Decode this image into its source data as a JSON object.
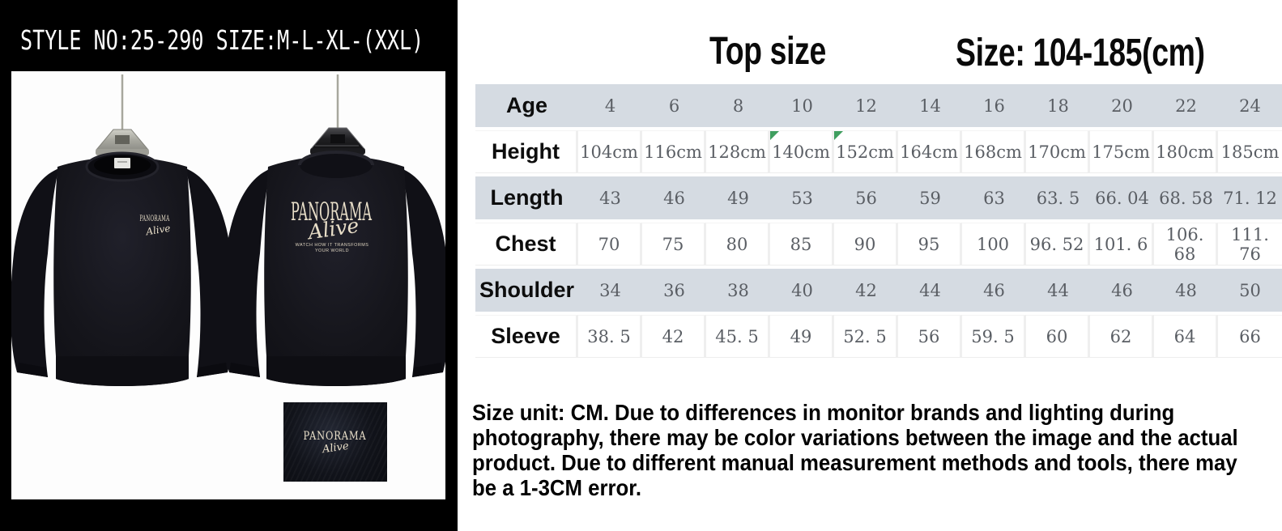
{
  "left_panel": {
    "style_line": "STYLE NO:25-290  SIZE:M-L-XL-(XXL)",
    "front_print": {
      "brand": "PANORAMA",
      "script": "Alive"
    },
    "back_print": {
      "brand": "PANORAMA",
      "script": "Alive",
      "tagline_line1": "WATCH HOW IT TRANSFORMS",
      "tagline_line2": "YOUR WORLD"
    },
    "swatch_print": {
      "brand": "PANORAMA",
      "script": "Alive"
    }
  },
  "size_panel": {
    "title": "Top size",
    "size_range": "Size: 104-185(cm)",
    "table": {
      "rows": [
        {
          "label": "Age",
          "shade": "gray",
          "values": [
            "4",
            "6",
            "8",
            "10",
            "12",
            "14",
            "16",
            "18",
            "20",
            "22",
            "24"
          ]
        },
        {
          "label": "Height",
          "shade": "white",
          "values": [
            "104cm",
            "116cm",
            "128cm",
            "140cm",
            "152cm",
            "164cm",
            "168cm",
            "170cm",
            "175cm",
            "180cm",
            "185cm"
          ],
          "markers": [
            3,
            4
          ]
        },
        {
          "label": "Length",
          "shade": "gray",
          "values": [
            "43",
            "46",
            "49",
            "53",
            "56",
            "59",
            "63",
            "63. 5",
            "66. 04",
            "68. 58",
            "71. 12"
          ]
        },
        {
          "label": "Chest",
          "shade": "white",
          "values": [
            "70",
            "75",
            "80",
            "85",
            "90",
            "95",
            "100",
            "96. 52",
            "101. 6",
            "106. 68",
            "111. 76"
          ]
        },
        {
          "label": "Shoulder",
          "shade": "gray",
          "values": [
            "34",
            "36",
            "38",
            "40",
            "42",
            "44",
            "46",
            "44",
            "46",
            "48",
            "50"
          ]
        },
        {
          "label": "Sleeve",
          "shade": "white",
          "values": [
            "38. 5",
            "42",
            "45. 5",
            "49",
            "52. 5",
            "56",
            "59. 5",
            "60",
            "62",
            "64",
            "66"
          ]
        }
      ]
    },
    "disclaimer_lines": [
      "Size unit: CM. Due to differences in monitor brands and lighting during",
      "photography, there may be color variations between the image and the actual",
      "product. Due to different manual measurement methods and tools, there may",
      "be a 1-3CM error."
    ]
  },
  "colors": {
    "row_shade": "#d5dbe2",
    "value_text": "#5a5e64",
    "marker_green": "#3f9e5f",
    "print_cream": "#e9dfc9"
  }
}
